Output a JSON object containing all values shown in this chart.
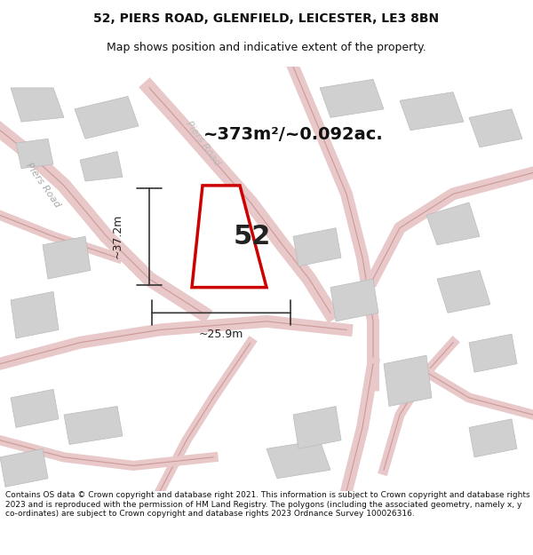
{
  "title_line1": "52, PIERS ROAD, GLENFIELD, LEICESTER, LE3 8BN",
  "title_line2": "Map shows position and indicative extent of the property.",
  "area_text": "~373m²/~0.092ac.",
  "number_label": "52",
  "dim_vertical": "~37.2m",
  "dim_horizontal": "~25.9m",
  "footer_text": "Contains OS data © Crown copyright and database right 2021. This information is subject to Crown copyright and database rights 2023 and is reproduced with the permission of HM Land Registry. The polygons (including the associated geometry, namely x, y co-ordinates) are subject to Crown copyright and database rights 2023 Ordnance Survey 100026316.",
  "bg_color": "#f5f5f5",
  "map_bg_color": "#f0f0f0",
  "property_fill": "#ffffff",
  "property_edge": "#cc0000",
  "road_label1": "Piers Road",
  "road_label2": "Piers Road",
  "road_color": "#f5c0c0",
  "building_color": "#d8d8d8",
  "title_fontsize": 10,
  "subtitle_fontsize": 9,
  "footer_fontsize": 6.5
}
